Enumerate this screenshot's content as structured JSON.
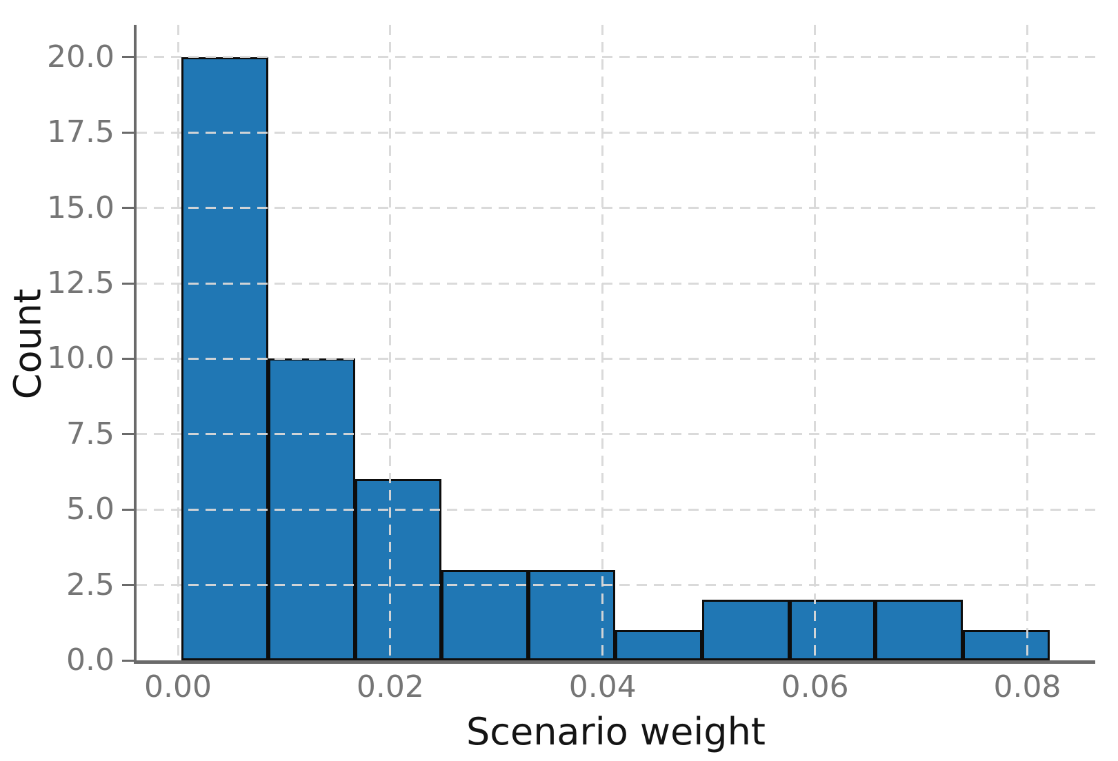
{
  "figure": {
    "background": "#ffffff"
  },
  "chart_data": {
    "type": "bar",
    "subtype": "histogram",
    "title": "",
    "xlabel": "Scenario weight",
    "ylabel": "Count",
    "bin_edges": [
      0.0003,
      0.0085,
      0.0167,
      0.0248,
      0.033,
      0.0412,
      0.0494,
      0.0576,
      0.0657,
      0.0739,
      0.0821
    ],
    "counts": [
      20,
      10,
      6,
      3,
      3,
      1,
      2,
      2,
      2,
      1
    ],
    "total_count": 50,
    "xticks": [
      0.0,
      0.02,
      0.04,
      0.06,
      0.08
    ],
    "xtick_labels": [
      "0.00",
      "0.02",
      "0.04",
      "0.06",
      "0.08"
    ],
    "yticks": [
      0.0,
      2.5,
      5.0,
      7.5,
      10.0,
      12.5,
      15.0,
      17.5,
      20.0
    ],
    "ytick_labels": [
      "0.0",
      "2.5",
      "5.0",
      "7.5",
      "10.0",
      "12.5",
      "15.0",
      "17.5",
      "20.0"
    ],
    "xlim": [
      -0.0039,
      0.0864
    ],
    "ylim": [
      0,
      21.07
    ],
    "grid": true,
    "grid_style": "dashed",
    "grid_above_bars": true,
    "bar_color": "#2077b4",
    "bar_edge_color": "#0d0d0d",
    "grid_color": "#d8d8d8",
    "spine_color": "#6a6a6a",
    "tick_label_color": "#757575",
    "axis_label_color": "#141414"
  }
}
